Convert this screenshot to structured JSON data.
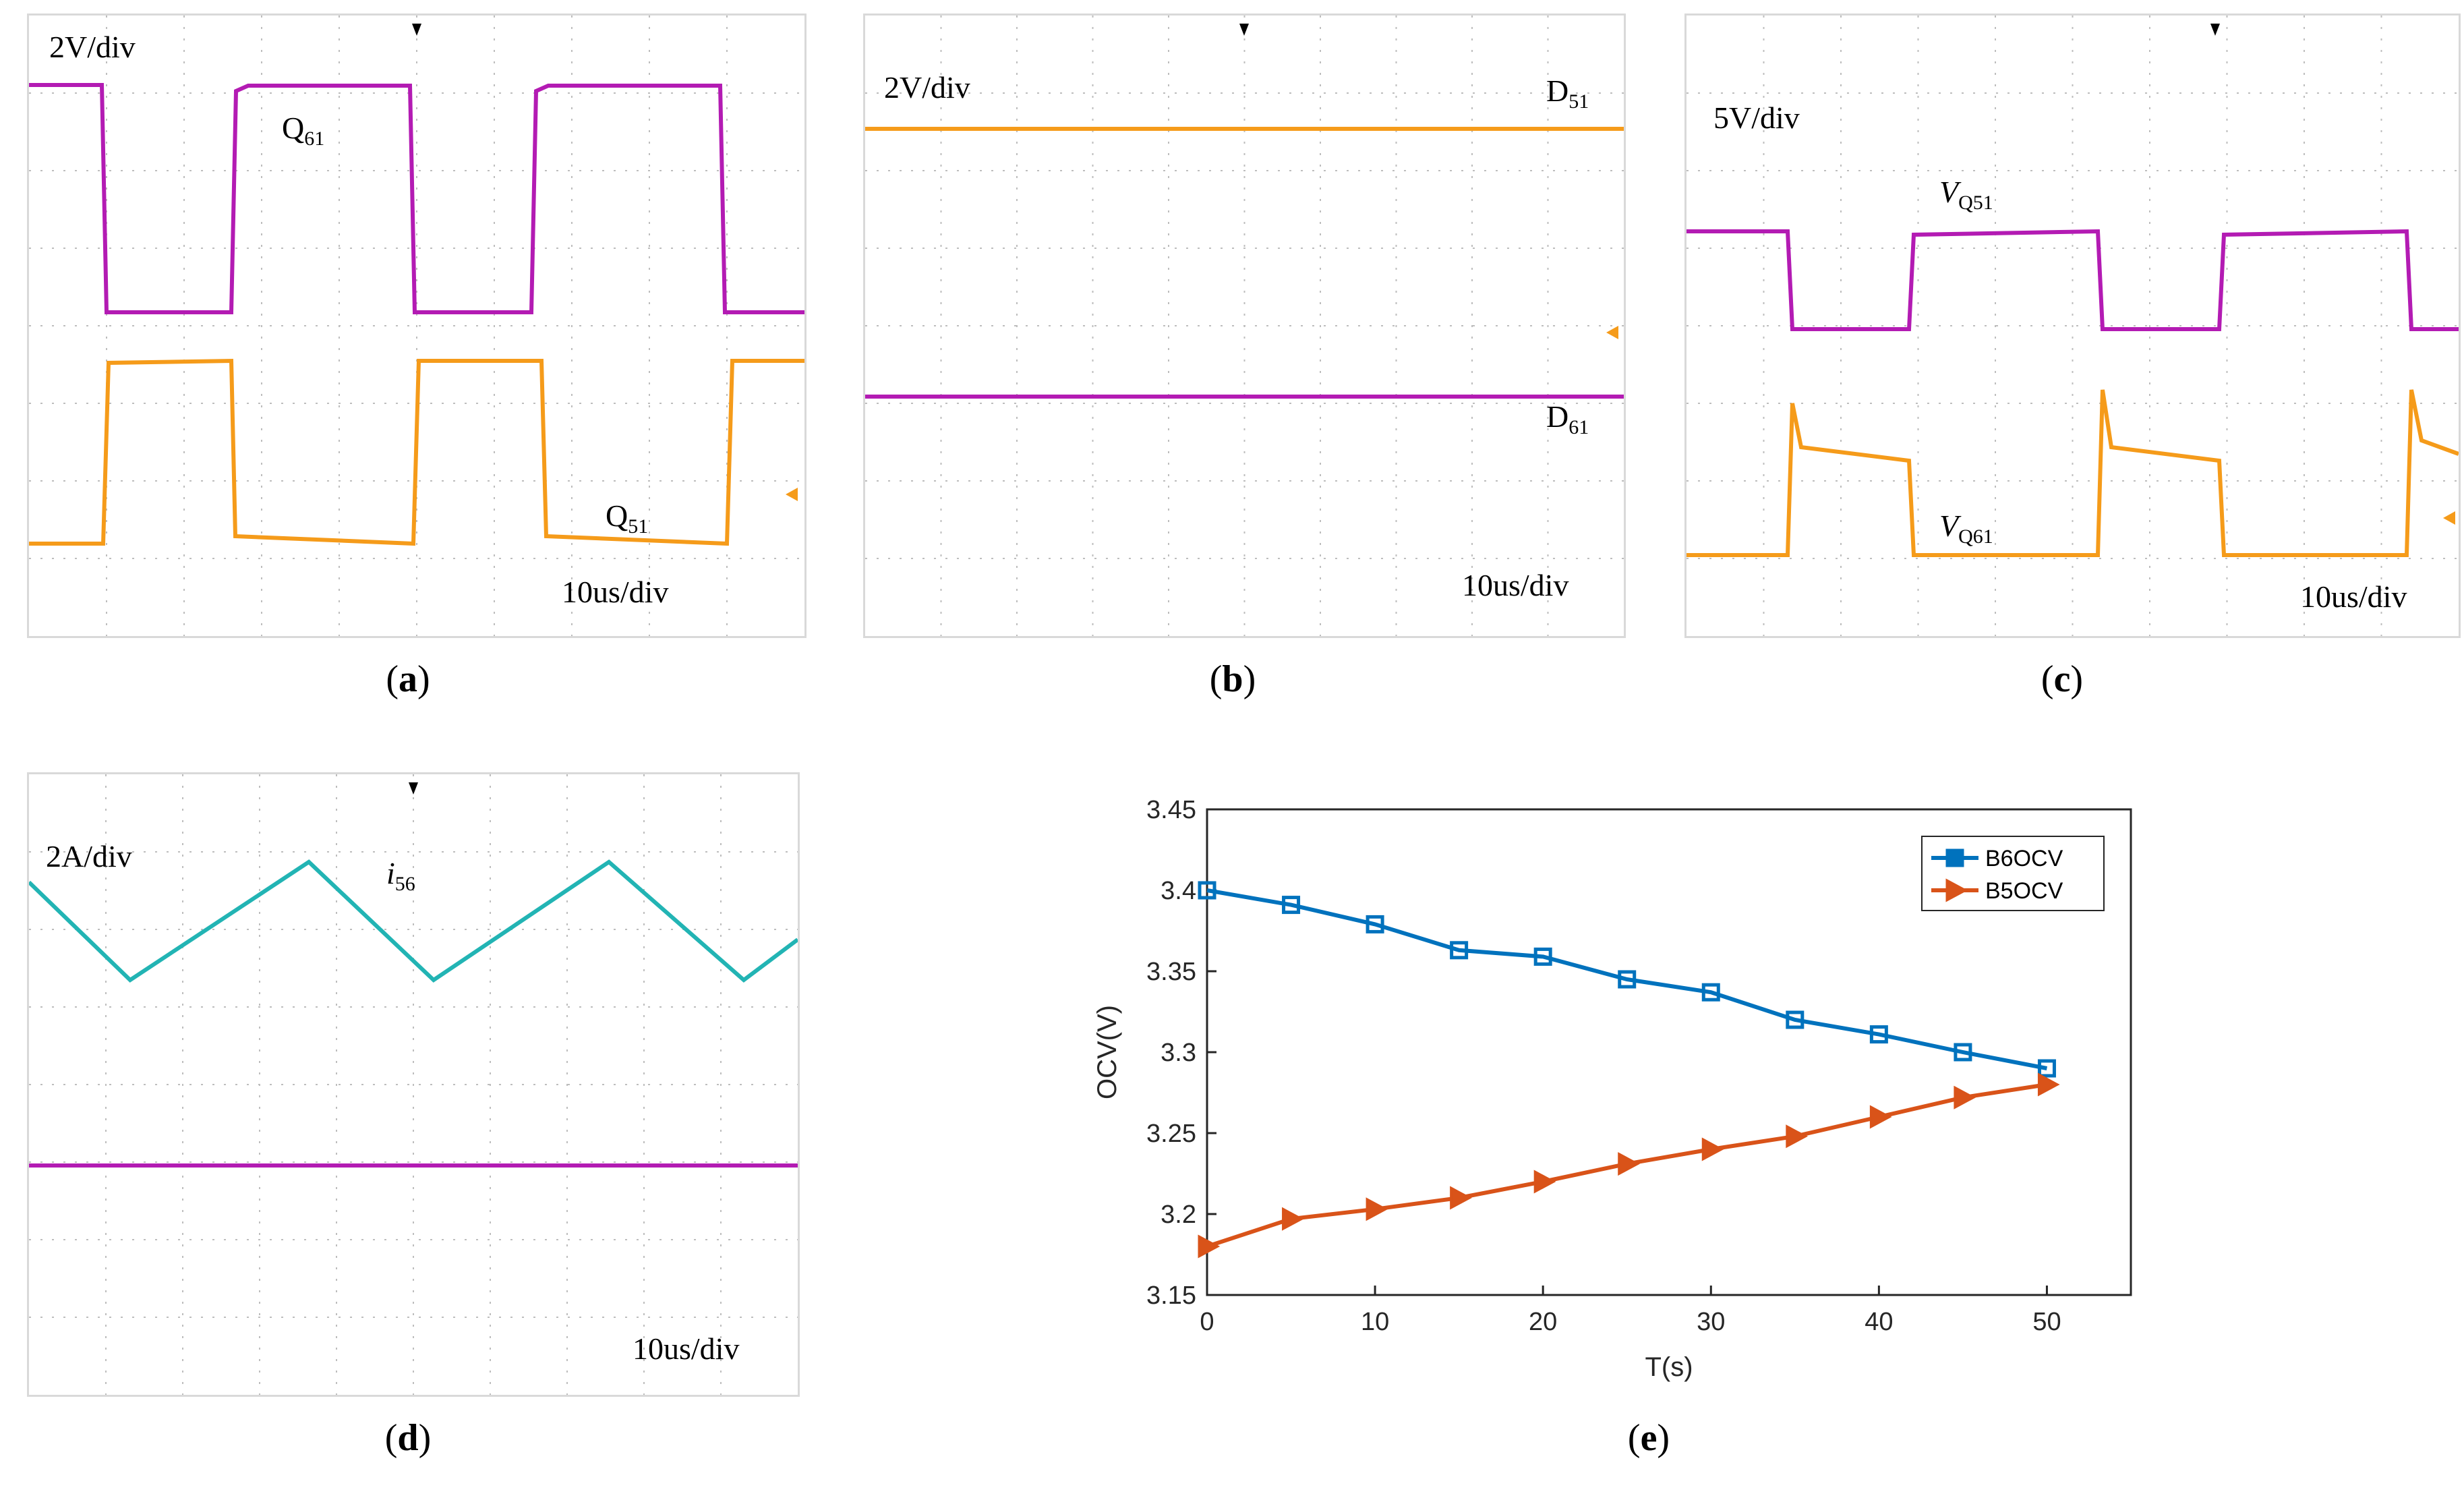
{
  "panels": {
    "a": {
      "caption_letter": "a",
      "volt_scale": "2V/div",
      "time_scale": "10us/div",
      "trace_labels": {
        "q61_main": "Q",
        "q61_sub": "61",
        "q51_main": "Q",
        "q51_sub": "51"
      },
      "trace_colors": {
        "q61": "#b31bb3",
        "q51": "#f59b1a"
      }
    },
    "b": {
      "caption_letter": "b",
      "volt_scale": "2V/div",
      "time_scale": "10us/div",
      "trace_labels": {
        "d51_main": "D",
        "d51_sub": "51",
        "d61_main": "D",
        "d61_sub": "61"
      },
      "trace_colors": {
        "d51": "#f59b1a",
        "d61": "#b31bb3"
      }
    },
    "c": {
      "caption_letter": "c",
      "volt_scale": "5V/div",
      "time_scale": "10us/div",
      "trace_labels": {
        "vq51_main": "V",
        "vq51_sub": "Q51",
        "vq61_main": "V",
        "vq61_sub": "Q61"
      },
      "trace_colors": {
        "vq51": "#b31bb3",
        "vq61": "#f59b1a"
      }
    },
    "d": {
      "caption_letter": "d",
      "amp_scale": "2A/div",
      "time_scale": "10us/div",
      "trace_labels": {
        "i56_main": "i",
        "i56_sub": "56"
      },
      "trace_colors": {
        "i56": "#22b4b4",
        "zero": "#b31bb3"
      }
    },
    "e": {
      "caption_letter": "e"
    }
  },
  "caption_paren_open": "(",
  "caption_paren_close": ")",
  "chart_data": {
    "type": "line",
    "title": "",
    "xlabel": "T(s)",
    "ylabel": "OCV(V)",
    "xlim": [
      0,
      55
    ],
    "ylim": [
      3.15,
      3.45
    ],
    "xticks": [
      0,
      10,
      20,
      30,
      40,
      50
    ],
    "yticks": [
      3.15,
      3.2,
      3.25,
      3.3,
      3.35,
      3.4,
      3.45
    ],
    "x": [
      0,
      5,
      10,
      15,
      20,
      25,
      30,
      35,
      40,
      45,
      50
    ],
    "series": [
      {
        "name": "B6OCV",
        "color": "#0072BD",
        "marker": "square",
        "values": [
          3.4,
          3.391,
          3.379,
          3.363,
          3.359,
          3.345,
          3.337,
          3.32,
          3.311,
          3.3,
          3.29
        ]
      },
      {
        "name": "B5OCV",
        "color": "#D95319",
        "marker": "triangle-right",
        "values": [
          3.18,
          3.197,
          3.203,
          3.21,
          3.22,
          3.231,
          3.24,
          3.248,
          3.26,
          3.272,
          3.28
        ]
      }
    ],
    "legend_position": "top-right",
    "grid": false
  }
}
